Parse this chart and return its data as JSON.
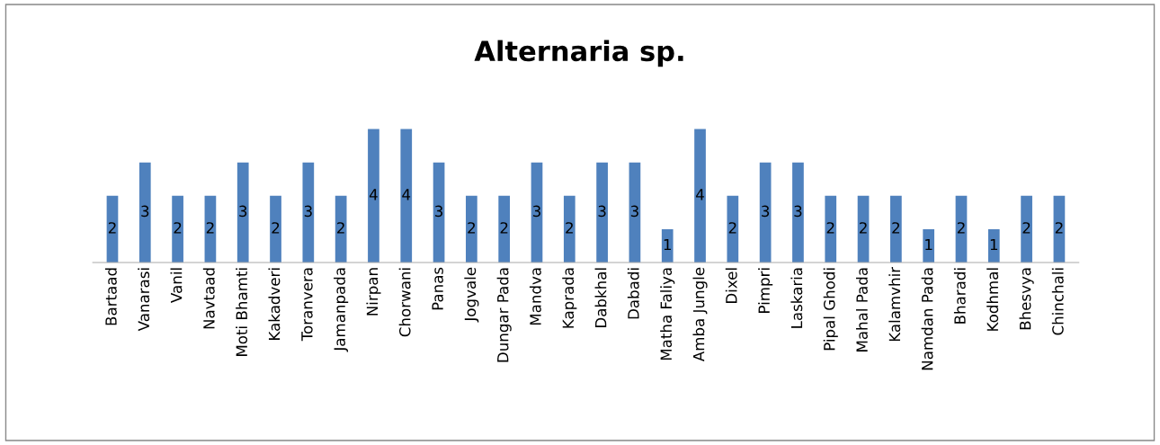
{
  "chart_data": {
    "type": "bar",
    "title": "Alternaria sp.",
    "categories": [
      "Bartaad",
      "Vanarasi",
      "Vanil",
      "Navtaad",
      "Moti Bhamti",
      "Kakadveri",
      "Toranvera",
      "Jamanpada",
      "Nirpan",
      "Chorwani",
      "Panas",
      "Jogvale",
      "Dungar Pada",
      "Mandva",
      "Kaprada",
      "Dabkhal",
      "Dabadi",
      "Matha Faliya",
      "Amba Jungle",
      "Dixel",
      "Pimpri",
      "Laskaria",
      "Pipal Ghodi",
      "Mahal Pada",
      "Kalamvhir",
      "Namdan Pada",
      "Bharadi",
      "Kodhmal",
      "Bhesvya",
      "Chinchali"
    ],
    "values": [
      2,
      3,
      2,
      2,
      3,
      2,
      3,
      2,
      4,
      4,
      3,
      2,
      2,
      3,
      2,
      3,
      3,
      1,
      4,
      2,
      3,
      3,
      2,
      2,
      2,
      1,
      2,
      1,
      2,
      2
    ],
    "color": "#4f81bd",
    "data_labels": true,
    "tick_labels": "x",
    "grid": false,
    "legend": false
  }
}
